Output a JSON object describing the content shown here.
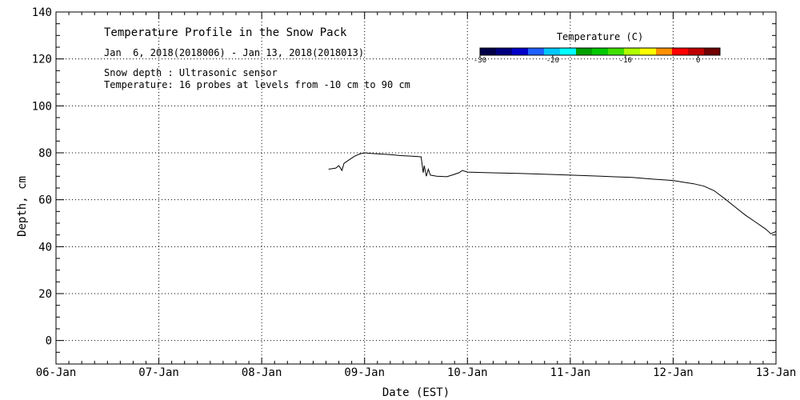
{
  "chart_data": {
    "type": "line",
    "title": "Temperature Profile in the Snow Pack",
    "subtitle": "Jan  6, 2018(2018006) - Jan 13, 2018(2018013)",
    "annotations": [
      "Snow depth : Ultrasonic sensor",
      "Temperature: 16 probes at levels from -10 cm to 90 cm"
    ],
    "xlabel": "Date (EST)",
    "ylabel": "Depth, cm",
    "xlim": [
      0,
      7
    ],
    "ylim": [
      -10,
      140
    ],
    "x_ticks": [
      {
        "value": 0,
        "label": "06-Jan"
      },
      {
        "value": 1,
        "label": "07-Jan"
      },
      {
        "value": 2,
        "label": "08-Jan"
      },
      {
        "value": 3,
        "label": "09-Jan"
      },
      {
        "value": 4,
        "label": "10-Jan"
      },
      {
        "value": 5,
        "label": "11-Jan"
      },
      {
        "value": 6,
        "label": "12-Jan"
      },
      {
        "value": 7,
        "label": "13-Jan"
      }
    ],
    "y_ticks": [
      {
        "value": 0,
        "label": "0"
      },
      {
        "value": 20,
        "label": "20"
      },
      {
        "value": 40,
        "label": "40"
      },
      {
        "value": 60,
        "label": "60"
      },
      {
        "value": 80,
        "label": "80"
      },
      {
        "value": 100,
        "label": "100"
      },
      {
        "value": 120,
        "label": "120"
      },
      {
        "value": 140,
        "label": "140"
      }
    ],
    "grid": true,
    "series": [
      {
        "name": "Snow depth",
        "color": "#000000",
        "x": [
          2.65,
          2.72,
          2.75,
          2.78,
          2.8,
          2.85,
          2.9,
          2.95,
          3.0,
          3.05,
          3.15,
          3.25,
          3.35,
          3.45,
          3.55,
          3.57,
          3.58,
          3.6,
          3.62,
          3.64,
          3.7,
          3.8,
          3.85,
          3.92,
          3.95,
          4.0,
          4.2,
          4.5,
          4.8,
          5.0,
          5.3,
          5.6,
          5.8,
          6.0,
          6.1,
          6.2,
          6.3,
          6.4,
          6.5,
          6.6,
          6.7,
          6.8,
          6.9,
          6.95,
          7.0
        ],
        "values": [
          73,
          73.5,
          74.5,
          72.5,
          75.5,
          77,
          78.5,
          79.5,
          80,
          79.8,
          79.5,
          79.2,
          78.8,
          78.6,
          78.3,
          71.5,
          74.5,
          70,
          73,
          70.5,
          70,
          69.8,
          70.5,
          71.5,
          72.5,
          71.8,
          71.5,
          71.2,
          70.8,
          70.5,
          70,
          69.5,
          68.8,
          68.2,
          67.5,
          66.8,
          65.8,
          63.8,
          60.5,
          57,
          53.5,
          50.5,
          47.5,
          45.5,
          46.5
        ]
      }
    ],
    "colorbar": {
      "title": "Temperature (C)",
      "range": [
        -30,
        3
      ],
      "tick_labels": [
        {
          "value": -30,
          "label": "-30"
        },
        {
          "value": -20,
          "label": "-20"
        },
        {
          "value": -10,
          "label": "-10"
        },
        {
          "value": 0,
          "label": "0"
        }
      ],
      "colors": [
        "#00004a",
        "#000080",
        "#0000c8",
        "#1e60ff",
        "#00c8ff",
        "#00ffff",
        "#00a000",
        "#00c800",
        "#40e000",
        "#b0ff00",
        "#ffff00",
        "#ff9000",
        "#ff0000",
        "#c00000",
        "#700000"
      ]
    }
  }
}
